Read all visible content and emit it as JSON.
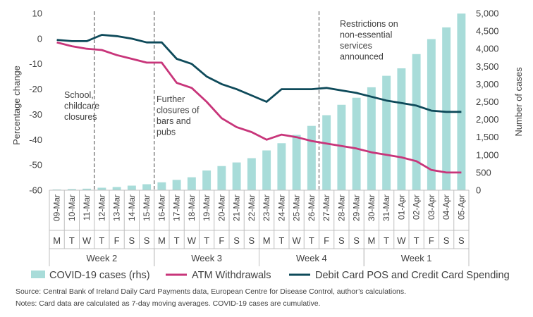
{
  "chart_data": {
    "type": "bar+line",
    "categories": [
      "09-Mar",
      "10-Mar",
      "11-Mar",
      "12-Mar",
      "13-Mar",
      "14-Mar",
      "15-Mar",
      "16-Mar",
      "17-Mar",
      "18-Mar",
      "19-Mar",
      "20-Mar",
      "21-Mar",
      "22-Mar",
      "23-Mar",
      "24-Mar",
      "25-Mar",
      "26-Mar",
      "27-Mar",
      "28-Mar",
      "29-Mar",
      "30-Mar",
      "31-Mar",
      "01-Apr",
      "02-Apr",
      "03-Apr",
      "04-Apr",
      "05-Apr"
    ],
    "day_letters": [
      "M",
      "T",
      "W",
      "T",
      "F",
      "S",
      "S",
      "M",
      "T",
      "W",
      "T",
      "F",
      "S",
      "S",
      "M",
      "T",
      "W",
      "T",
      "F",
      "S",
      "S",
      "M",
      "T",
      "W",
      "T",
      "F",
      "S",
      "S"
    ],
    "weeks": [
      {
        "label": "Week 2",
        "start": 0,
        "end": 6
      },
      {
        "label": "Week 3",
        "start": 7,
        "end": 13
      },
      {
        "label": "Week 4",
        "start": 14,
        "end": 20
      },
      {
        "label": "Week 1",
        "start": 21,
        "end": 27
      }
    ],
    "series": [
      {
        "name": "COVID-19 cases (rhs)",
        "type": "bar",
        "axis": "right",
        "color": "#a8dcd9",
        "values": [
          21,
          34,
          43,
          70,
          90,
          129,
          169,
          223,
          292,
          366,
          557,
          683,
          785,
          906,
          1125,
          1329,
          1564,
          1819,
          2121,
          2415,
          2615,
          2910,
          3235,
          3447,
          3849,
          4273,
          4604,
          4994
        ]
      },
      {
        "name": "ATM Withdrawals",
        "type": "line",
        "axis": "left",
        "color": "#c8357a",
        "values": [
          -1.5,
          -3.0,
          -4.0,
          -4.5,
          -6.5,
          -8.0,
          -9.5,
          -9.5,
          -17.5,
          -19.5,
          -25.0,
          -31.5,
          -35.0,
          -37.0,
          -40.0,
          -38.0,
          -39.0,
          -40.5,
          -41.5,
          -42.5,
          -43.5,
          -45.0,
          -46.0,
          -47.0,
          -48.5,
          -52.0,
          -53.0,
          -53.0
        ]
      },
      {
        "name": "Debit Card POS and Credit Card Spending",
        "type": "line",
        "axis": "left",
        "color": "#0e4a5a",
        "values": [
          -0.5,
          -1.0,
          -1.0,
          1.5,
          1.0,
          0.0,
          -1.5,
          -1.5,
          -8.0,
          -10.0,
          -15.0,
          -18.0,
          -20.0,
          -22.5,
          -25.0,
          -20.0,
          -20.0,
          -20.0,
          -19.5,
          -20.5,
          -21.5,
          -23.0,
          -24.5,
          -25.5,
          -26.5,
          -28.5,
          -29.0,
          -29.0
        ]
      }
    ],
    "ylabel": "Percentage change",
    "y2label": "Number of cases",
    "ylim": [
      -60,
      10
    ],
    "y_ticks": [
      10,
      0,
      -10,
      -20,
      -30,
      -40,
      -50,
      -60
    ],
    "y2lim": [
      0,
      5000
    ],
    "y2_ticks": [
      "5,000",
      "4,500",
      "4,000",
      "3,500",
      "3,000",
      "2,500",
      "2,000",
      "1,500",
      "1,000",
      "500",
      "0"
    ],
    "annotations": [
      {
        "index": 3,
        "lines": [
          "School,",
          "childcare",
          "closures"
        ]
      },
      {
        "index": 7,
        "lines": [
          "Further",
          "closures of",
          "bars and",
          "pubs"
        ]
      },
      {
        "index": 18,
        "lines": [
          "Restrictions on",
          "non-essential",
          "services",
          "announced"
        ]
      }
    ],
    "legend_position": "bottom",
    "grid": false
  },
  "source": "Source:  Central Bank of Ireland Daily Card Payments data, European Centre for Disease Control, author’s calculations.",
  "notes": "Notes: Card data are calculated as 7-day moving averages. COVID-19 cases are cumulative."
}
